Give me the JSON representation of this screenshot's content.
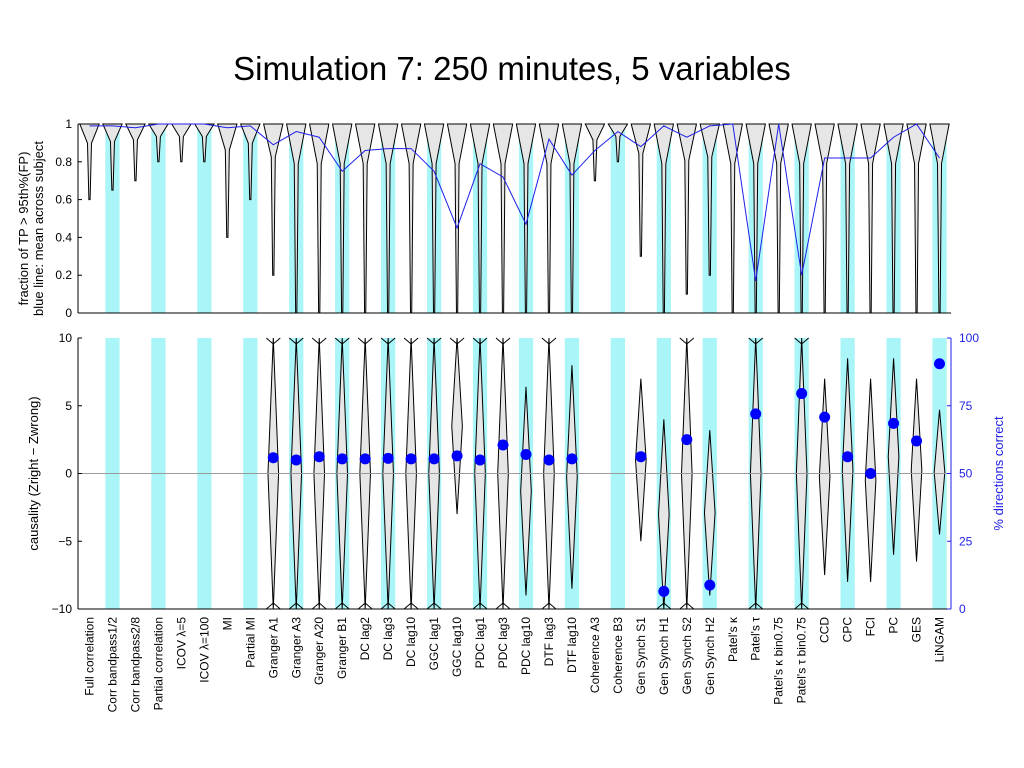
{
  "title": "Simulation 7: 250 minutes, 5 variables",
  "colors": {
    "band": "#aaf5f8",
    "violin_fill": "#e6e6e6",
    "violin_stroke": "#000000",
    "blue": "#1f1fe8",
    "marker": "#0000ff",
    "zero_line": "#9a9a9a"
  },
  "chart_data": [
    {
      "type": "violin",
      "panel": "top",
      "ylabel": "fraction of TP > 95th%(FP)",
      "ylabel2": "blue line: mean across subject",
      "ylim": [
        0,
        1
      ],
      "yticks": [
        0,
        0.2,
        0.4,
        0.6,
        0.8,
        1
      ],
      "yticklabels": [
        "0",
        "0.2",
        "0.4",
        "0.6",
        "0.8",
        "1"
      ],
      "categories": [
        "Full correlation",
        "Corr bandpass1/2",
        "Corr bandpass2/8",
        "Partial correlation",
        "ICOV λ=5",
        "ICOV λ=100",
        "MI",
        "Partial MI",
        "Granger A1",
        "Granger A3",
        "Granger A20",
        "Granger B1",
        "DC lag2",
        "DC lag3",
        "DC lag10",
        "GGC lag1",
        "GGC lag10",
        "PDC lag1",
        "PDC lag3",
        "PDC lag10",
        "DTF lag3",
        "DTF lag10",
        "Coherence A3",
        "Coherence B3",
        "Gen Synch S1",
        "Gen Synch H1",
        "Gen Synch S2",
        "Gen Synch H2",
        "Patel's κ",
        "Patel's τ",
        "Patel's κ bin0.75",
        "Patel's τ bin0.75",
        "CCD",
        "CPC",
        "FCI",
        "PC",
        "GES",
        "LiNGAM"
      ],
      "shaded_bands": [
        1,
        3,
        5,
        7,
        9,
        11,
        13,
        15,
        17,
        19,
        21,
        23,
        25,
        27,
        29,
        31,
        33,
        35,
        37
      ],
      "violin_min": [
        0.6,
        0.65,
        0.7,
        0.8,
        0.8,
        0.8,
        0.4,
        0.6,
        0.2,
        0.0,
        0.0,
        0.0,
        0.0,
        0.0,
        0.0,
        0.0,
        0.0,
        0.0,
        0.0,
        0.0,
        0.0,
        0.0,
        0.7,
        0.8,
        0.3,
        0.0,
        0.1,
        0.2,
        0.0,
        0.0,
        0.0,
        0.0,
        0.0,
        0.0,
        0.0,
        0.0,
        0.0,
        0.0
      ],
      "mean_line": [
        0.99,
        0.99,
        0.98,
        1.0,
        1.0,
        1.0,
        0.98,
        0.99,
        0.89,
        0.96,
        0.93,
        0.75,
        0.86,
        0.87,
        0.87,
        0.75,
        0.45,
        0.79,
        0.72,
        0.47,
        0.92,
        0.73,
        0.86,
        0.96,
        0.88,
        0.99,
        0.93,
        0.99,
        1.0,
        0.17,
        1.0,
        0.2,
        0.82,
        0.82,
        0.82,
        0.93,
        1.0,
        0.82
      ]
    },
    {
      "type": "violin",
      "panel": "bottom",
      "ylabel": "causality  (Zright − Zwrong)",
      "ylim": [
        -10,
        10
      ],
      "yticks": [
        -10,
        -5,
        0,
        5,
        10
      ],
      "yticklabels": [
        "−10",
        "−5",
        "0",
        "5",
        "10"
      ],
      "y2label": "% directions correct",
      "y2lim": [
        0,
        100
      ],
      "y2ticks": [
        0,
        25,
        50,
        75,
        100
      ],
      "y2ticklabels": [
        "0",
        "25",
        "50",
        "75",
        "100"
      ],
      "percent_correct": [
        null,
        null,
        null,
        null,
        null,
        null,
        null,
        null,
        55.8,
        55.0,
        56.2,
        55.4,
        55.4,
        55.6,
        55.4,
        55.4,
        56.5,
        55.0,
        60.5,
        57.0,
        55.0,
        55.4,
        null,
        null,
        56.2,
        6.5,
        62.5,
        8.8,
        null,
        72.0,
        null,
        79.5,
        70.8,
        56.2,
        50.0,
        68.5,
        62.0,
        90.5
      ],
      "violin_extent": [
        null,
        null,
        null,
        null,
        null,
        null,
        null,
        null,
        [
          -10,
          10
        ],
        [
          -10,
          10
        ],
        [
          -10,
          10
        ],
        [
          -10,
          10
        ],
        [
          -10,
          10
        ],
        [
          -10,
          10
        ],
        [
          -10,
          10
        ],
        [
          -10,
          10
        ],
        [
          -3,
          10
        ],
        [
          -10,
          10
        ],
        [
          -10,
          10
        ],
        [
          -9,
          6.4
        ],
        [
          -10,
          10
        ],
        [
          -8.5,
          8
        ],
        null,
        null,
        [
          -5,
          7
        ],
        [
          -10,
          4
        ],
        [
          -10,
          10
        ],
        [
          -9,
          3.2
        ],
        null,
        [
          -10,
          10
        ],
        null,
        [
          -10,
          10
        ],
        [
          -7.5,
          7
        ],
        [
          -8,
          8.5
        ],
        [
          -8,
          7
        ],
        [
          -6,
          8.5
        ],
        [
          -6.5,
          7
        ],
        [
          -4.5,
          4.7
        ]
      ]
    }
  ]
}
